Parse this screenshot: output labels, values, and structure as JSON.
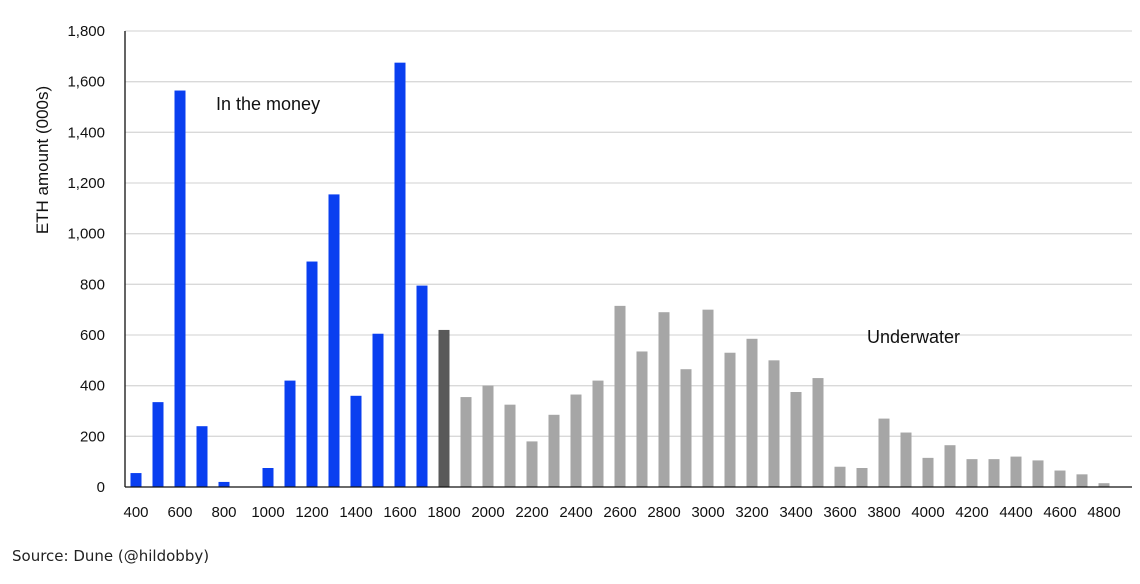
{
  "source_note": "Source: Dune (@hildobby)",
  "chart_data": {
    "type": "bar",
    "title": "",
    "xlabel": "",
    "ylabel": "ETH amount (000s)",
    "ylim": [
      0,
      1800
    ],
    "yticks": [
      0,
      200,
      400,
      600,
      800,
      1000,
      1200,
      1400,
      1600,
      1800
    ],
    "ytick_labels": [
      "0",
      "200",
      "400",
      "600",
      "800",
      "1,000",
      "1,200",
      "1,400",
      "1,600",
      "1,800"
    ],
    "xtick_labels": [
      "400",
      "600",
      "800",
      "1000",
      "1200",
      "1400",
      "1600",
      "1800",
      "2000",
      "2200",
      "2400",
      "2600",
      "2800",
      "3000",
      "3200",
      "3400",
      "3600",
      "3800",
      "4000",
      "4200",
      "4400",
      "4600",
      "4800"
    ],
    "categories": [
      400,
      500,
      600,
      700,
      800,
      900,
      1000,
      1100,
      1200,
      1300,
      1400,
      1500,
      1600,
      1700,
      1800,
      1900,
      2000,
      2100,
      2200,
      2300,
      2400,
      2500,
      2600,
      2700,
      2800,
      2900,
      3000,
      3100,
      3200,
      3300,
      3400,
      3500,
      3600,
      3700,
      3800,
      3900,
      4000,
      4100,
      4200,
      4300,
      4400,
      4500,
      4600,
      4700,
      4800
    ],
    "values": [
      55,
      335,
      1565,
      240,
      20,
      0,
      75,
      420,
      890,
      1155,
      360,
      605,
      1675,
      795,
      620,
      355,
      400,
      325,
      180,
      285,
      365,
      420,
      715,
      535,
      690,
      465,
      700,
      530,
      585,
      500,
      375,
      430,
      80,
      75,
      270,
      215,
      115,
      165,
      110,
      110,
      120,
      105,
      65,
      50,
      15
    ],
    "groups": [
      "in_the_money",
      "in_the_money",
      "in_the_money",
      "in_the_money",
      "in_the_money",
      "in_the_money",
      "in_the_money",
      "in_the_money",
      "in_the_money",
      "in_the_money",
      "in_the_money",
      "in_the_money",
      "in_the_money",
      "in_the_money",
      "current",
      "underwater",
      "underwater",
      "underwater",
      "underwater",
      "underwater",
      "underwater",
      "underwater",
      "underwater",
      "underwater",
      "underwater",
      "underwater",
      "underwater",
      "underwater",
      "underwater",
      "underwater",
      "underwater",
      "underwater",
      "underwater",
      "underwater",
      "underwater",
      "underwater",
      "underwater",
      "underwater",
      "underwater",
      "underwater",
      "underwater",
      "underwater",
      "underwater",
      "underwater",
      "underwater"
    ],
    "colors": {
      "in_the_money": "#0a3ff0",
      "current": "#595959",
      "underwater": "#a6a6a6",
      "grid": "#d9d9d9",
      "axis": "#111111"
    },
    "grid": true,
    "annotations": {
      "in_the_money": "In the money",
      "underwater": "Underwater"
    }
  }
}
